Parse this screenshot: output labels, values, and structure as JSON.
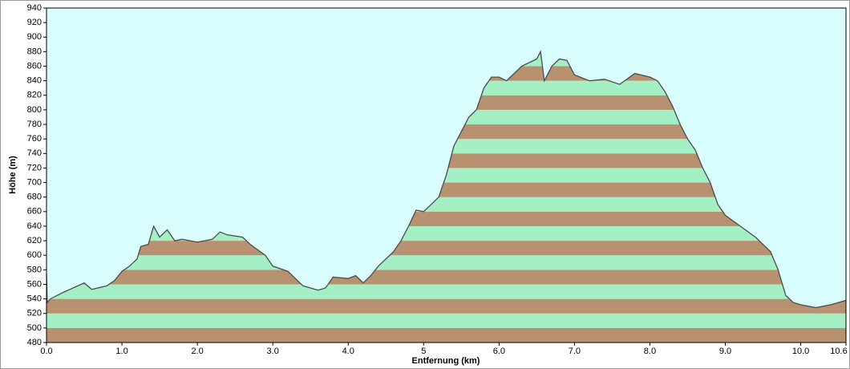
{
  "chart_data": {
    "type": "area",
    "ylabel": "Höhe (m)",
    "xlabel": "Entfernung  (km)",
    "x": [
      0.0,
      0.01,
      0.05,
      0.2,
      0.5,
      0.6,
      0.8,
      0.9,
      1.0,
      1.1,
      1.2,
      1.25,
      1.35,
      1.42,
      1.5,
      1.6,
      1.7,
      1.8,
      2.0,
      2.2,
      2.3,
      2.4,
      2.6,
      2.7,
      2.9,
      3.0,
      3.2,
      3.4,
      3.6,
      3.7,
      3.8,
      4.0,
      4.1,
      4.2,
      4.3,
      4.4,
      4.6,
      4.7,
      4.8,
      4.9,
      5.0,
      5.1,
      5.2,
      5.3,
      5.4,
      5.5,
      5.6,
      5.7,
      5.8,
      5.9,
      6.0,
      6.1,
      6.2,
      6.3,
      6.4,
      6.5,
      6.55,
      6.6,
      6.7,
      6.8,
      6.9,
      7.0,
      7.2,
      7.4,
      7.6,
      7.8,
      8.0,
      8.1,
      8.2,
      8.3,
      8.4,
      8.5,
      8.6,
      8.7,
      8.8,
      8.9,
      9.0,
      9.2,
      9.4,
      9.6,
      9.7,
      9.8,
      9.9,
      10.0,
      10.2,
      10.4,
      10.6
    ],
    "series": [
      {
        "color": "#4a4a4a",
        "values": [
          575,
          535,
          540,
          548,
          562,
          553,
          558,
          565,
          578,
          585,
          595,
          612,
          615,
          640,
          625,
          635,
          620,
          622,
          618,
          622,
          632,
          628,
          625,
          615,
          600,
          585,
          578,
          558,
          552,
          555,
          570,
          568,
          572,
          562,
          572,
          585,
          605,
          620,
          640,
          662,
          660,
          670,
          680,
          710,
          750,
          770,
          790,
          800,
          830,
          845,
          845,
          840,
          850,
          860,
          865,
          870,
          880,
          840,
          860,
          870,
          868,
          848,
          840,
          842,
          835,
          850,
          845,
          840,
          825,
          805,
          780,
          760,
          745,
          720,
          700,
          670,
          655,
          640,
          625,
          605,
          580,
          545,
          535,
          532,
          528,
          532,
          538
        ]
      }
    ],
    "band_colors": [
      "#b89270",
      "#a4f0c4"
    ],
    "background": "#d9fcfc",
    "xlim": [
      0,
      10.6
    ],
    "xticks": [
      {
        "value": 0,
        "label": "0.0"
      },
      {
        "value": 1,
        "label": "1.0"
      },
      {
        "value": 2,
        "label": "2.0"
      },
      {
        "value": 3,
        "label": "3.0"
      },
      {
        "value": 4,
        "label": "4.0"
      },
      5.0,
      {
        "value": 6,
        "label": "6.0"
      },
      {
        "value": 7,
        "label": "7.0"
      },
      {
        "value": 8,
        "label": "8.0"
      },
      {
        "value": 9,
        "label": "9.0"
      },
      {
        "value": 10,
        "label": "10.0"
      },
      10.6
    ],
    "ylim": [
      480,
      940
    ],
    "yticks": [
      480,
      500,
      520,
      540,
      560,
      580,
      600,
      620,
      640,
      660,
      680,
      700,
      720,
      740,
      760,
      780,
      800,
      820,
      840,
      860,
      880,
      900,
      920,
      940
    ]
  }
}
